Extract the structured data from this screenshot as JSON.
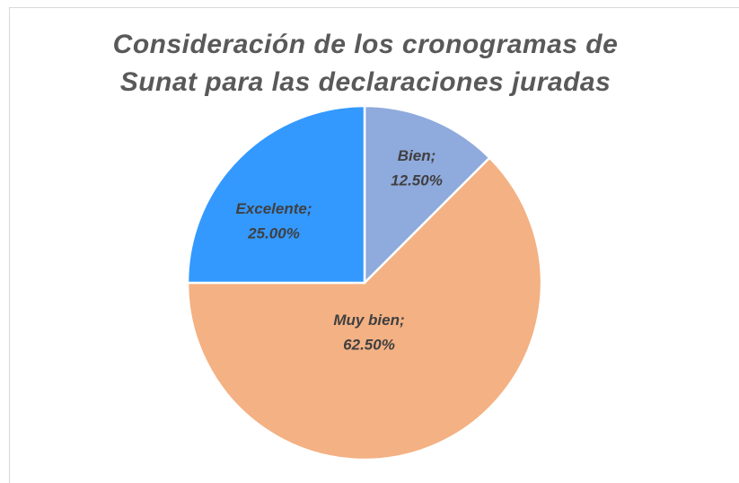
{
  "chart_data": {
    "type": "pie",
    "title": [
      "Consideración de los cronogramas de",
      "Sunat para las declaraciones juradas"
    ],
    "categories": [
      "Bien",
      "Muy bien",
      "Excelente"
    ],
    "label_separator": ";",
    "values": [
      12.5,
      62.5,
      25
    ],
    "value_labels": [
      "12.50%",
      "62.50%",
      "25.00%"
    ],
    "colors": [
      "#8faadc",
      "#f4b183",
      "#3399ff"
    ]
  }
}
